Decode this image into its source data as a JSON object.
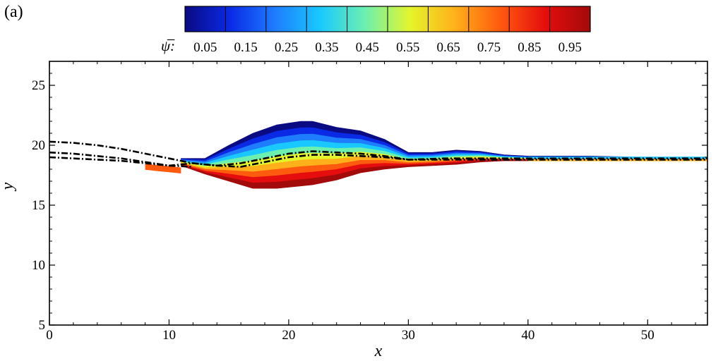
{
  "panel_label": "(a)",
  "colorbar": {
    "symbol": "ψ̅:",
    "tick_labels": [
      "0.05",
      "0.15",
      "0.25",
      "0.35",
      "0.45",
      "0.55",
      "0.65",
      "0.75",
      "0.85",
      "0.95"
    ],
    "range": [
      0,
      1
    ],
    "colors": [
      "#0a0a82",
      "#0a2ae6",
      "#1e7cff",
      "#19c8ff",
      "#6cf0b0",
      "#e4f52b",
      "#ffb01a",
      "#ff5a0e",
      "#e50d0d",
      "#a30a0a"
    ]
  },
  "chart_data": {
    "type": "contour",
    "title": "",
    "xlabel": "x",
    "ylabel": "y",
    "xlim": [
      0,
      55
    ],
    "ylim": [
      5,
      27
    ],
    "xticks": [
      0,
      10,
      20,
      30,
      40,
      50
    ],
    "yticks": [
      5,
      10,
      15,
      20,
      25
    ],
    "x_tick_labels": [
      "0",
      "10",
      "20",
      "30",
      "40",
      "50"
    ],
    "y_tick_labels": [
      "5",
      "10",
      "15",
      "20",
      "25"
    ],
    "grid": false,
    "field": {
      "name": "ψ̅",
      "x": [
        11,
        13,
        15,
        17,
        19,
        21,
        22,
        24,
        26,
        28,
        30,
        32,
        34,
        36,
        38,
        40,
        45,
        50,
        55
      ],
      "top_y": [
        18.9,
        18.9,
        20.0,
        21.0,
        21.7,
        22.0,
        22.0,
        21.5,
        21.2,
        20.5,
        19.4,
        19.4,
        19.6,
        19.5,
        19.2,
        19.1,
        19.1,
        19.0,
        19.0
      ],
      "bottom_y": [
        18.3,
        17.6,
        17.0,
        16.4,
        16.4,
        16.6,
        16.7,
        17.1,
        17.7,
        18.0,
        18.2,
        18.3,
        18.4,
        18.6,
        18.7,
        18.7,
        18.7,
        18.7,
        18.7
      ],
      "left_tail": {
        "x": [
          8,
          9,
          10,
          11
        ],
        "y": [
          18.3,
          18.2,
          18.1,
          18.0
        ]
      }
    },
    "series": [
      {
        "style": "dash-dot",
        "x": [
          0,
          2,
          4,
          6,
          8,
          10,
          12,
          14,
          16,
          18,
          20,
          22,
          24,
          26,
          28,
          30,
          33,
          36,
          40,
          45,
          50,
          55
        ],
        "y": [
          20.3,
          20.2,
          20.0,
          19.7,
          19.3,
          18.9,
          18.5,
          18.3,
          18.5,
          18.9,
          19.3,
          19.5,
          19.4,
          19.3,
          19.1,
          18.8,
          18.9,
          18.9,
          18.9,
          18.9,
          18.9,
          18.9
        ]
      },
      {
        "style": "dash-dot",
        "x": [
          0,
          2,
          4,
          6,
          8,
          10,
          12,
          14,
          16,
          18,
          20,
          22,
          24,
          26,
          28,
          30,
          33,
          36,
          40,
          45,
          50,
          55
        ],
        "y": [
          19.4,
          19.3,
          19.1,
          18.9,
          18.6,
          18.3,
          18.5,
          18.3,
          18.2,
          18.6,
          19.0,
          19.2,
          19.2,
          19.1,
          19.0,
          18.8,
          18.8,
          18.8,
          18.8,
          18.8,
          18.8,
          18.8
        ]
      },
      {
        "style": "dash-dot",
        "x": [
          0,
          2,
          4,
          6,
          8,
          10,
          12
        ],
        "y": [
          19.0,
          18.9,
          18.8,
          18.7,
          18.5,
          18.3,
          18.2
        ]
      }
    ]
  }
}
